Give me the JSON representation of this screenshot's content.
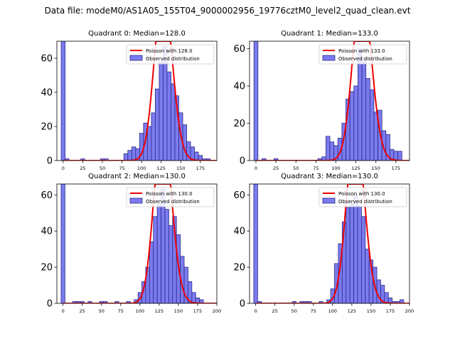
{
  "figure_title": "Data file: modeM0/AS1A05_155T04_9000002956_19776cztM0_level2_quad_clean.evt",
  "colors": {
    "bar_fill": "#7b7bef",
    "bar_edge": "#2a2a8a",
    "poisson_line": "#ee0000",
    "axis": "#000000"
  },
  "chart_data": [
    {
      "type": "bar",
      "title": "Quadrant 0: Median=128.0",
      "xlim": [
        -8,
        196
      ],
      "ylim": [
        0,
        70
      ],
      "xticks": [
        0,
        25,
        50,
        75,
        100,
        125,
        150,
        175
      ],
      "yticks": [
        0,
        20,
        40,
        60
      ],
      "bin_width": 5,
      "bins_x": [
        0,
        5,
        10,
        15,
        20,
        25,
        30,
        35,
        40,
        45,
        50,
        55,
        60,
        65,
        70,
        75,
        80,
        85,
        90,
        95,
        100,
        105,
        110,
        115,
        120,
        125,
        130,
        135,
        140,
        145,
        150,
        155,
        160,
        165,
        170,
        175,
        180,
        185
      ],
      "counts": [
        70,
        1,
        0,
        0,
        0,
        1,
        0,
        0,
        0,
        0,
        1,
        1,
        0,
        0,
        0,
        0,
        4,
        6,
        8,
        7,
        16,
        22,
        20,
        28,
        42,
        58,
        67,
        52,
        45,
        38,
        28,
        21,
        11,
        8,
        5,
        3,
        1,
        1
      ],
      "median": 128,
      "legend": [
        "Poisson with 128.0",
        "Observed distribution"
      ]
    },
    {
      "type": "bar",
      "title": "Quadrant 1: Median=133.0",
      "xlim": [
        -8,
        192
      ],
      "ylim": [
        0,
        64
      ],
      "xticks": [
        0,
        25,
        50,
        75,
        100,
        125,
        150,
        175
      ],
      "yticks": [
        0,
        20,
        40,
        60
      ],
      "bin_width": 5,
      "bins_x": [
        0,
        5,
        10,
        15,
        20,
        25,
        30,
        35,
        40,
        45,
        50,
        55,
        60,
        65,
        70,
        75,
        80,
        85,
        90,
        95,
        100,
        105,
        110,
        115,
        120,
        125,
        130,
        135,
        140,
        145,
        150,
        155,
        160,
        165,
        170,
        175,
        180
      ],
      "counts": [
        64,
        0,
        1,
        0,
        0,
        1,
        0,
        0,
        0,
        0,
        0,
        0,
        0,
        0,
        0,
        0,
        1,
        2,
        13,
        10,
        8,
        12,
        20,
        33,
        37,
        40,
        60,
        55,
        44,
        38,
        26,
        27,
        16,
        14,
        6,
        5,
        5
      ],
      "median": 133,
      "legend": [
        "Poisson with 133.0",
        "Observed distribution"
      ]
    },
    {
      "type": "bar",
      "title": "Quadrant 2: Median=130.0",
      "xlim": [
        -8,
        200
      ],
      "ylim": [
        0,
        66
      ],
      "xticks": [
        0,
        25,
        50,
        75,
        100,
        125,
        150,
        175,
        200
      ],
      "yticks": [
        0,
        20,
        40,
        60
      ],
      "bin_width": 5,
      "bins_x": [
        0,
        5,
        10,
        15,
        20,
        25,
        30,
        35,
        40,
        45,
        50,
        55,
        60,
        65,
        70,
        75,
        80,
        85,
        90,
        95,
        100,
        105,
        110,
        115,
        120,
        125,
        130,
        135,
        140,
        145,
        150,
        155,
        160,
        165,
        170,
        175,
        180,
        185,
        190
      ],
      "counts": [
        66,
        0,
        0,
        1,
        1,
        1,
        0,
        1,
        0,
        0,
        1,
        1,
        0,
        0,
        1,
        0,
        0,
        1,
        0,
        2,
        6,
        12,
        20,
        34,
        48,
        55,
        63,
        52,
        43,
        48,
        38,
        26,
        20,
        12,
        6,
        3,
        2,
        0,
        0
      ],
      "median": 130,
      "legend": [
        "Poisson with 130.0",
        "Observed distribution"
      ]
    },
    {
      "type": "bar",
      "title": "Quadrant 3: Median=130.0",
      "xlim": [
        -8,
        200
      ],
      "ylim": [
        0,
        66
      ],
      "xticks": [
        0,
        25,
        50,
        75,
        100,
        125,
        150,
        175,
        200
      ],
      "yticks": [
        0,
        20,
        40,
        60
      ],
      "bin_width": 5,
      "bins_x": [
        0,
        5,
        10,
        15,
        20,
        25,
        30,
        35,
        40,
        45,
        50,
        55,
        60,
        65,
        70,
        75,
        80,
        85,
        90,
        95,
        100,
        105,
        110,
        115,
        120,
        125,
        130,
        135,
        140,
        145,
        150,
        155,
        160,
        165,
        170,
        175,
        180,
        185,
        190
      ],
      "counts": [
        66,
        1,
        0,
        0,
        0,
        0,
        0,
        0,
        0,
        0,
        1,
        0,
        1,
        1,
        1,
        0,
        0,
        1,
        0,
        2,
        8,
        22,
        33,
        45,
        53,
        55,
        60,
        54,
        48,
        30,
        24,
        20,
        13,
        10,
        6,
        3,
        1,
        1,
        2
      ],
      "median": 130,
      "legend": [
        "Poisson with 130.0",
        "Observed distribution"
      ]
    }
  ]
}
